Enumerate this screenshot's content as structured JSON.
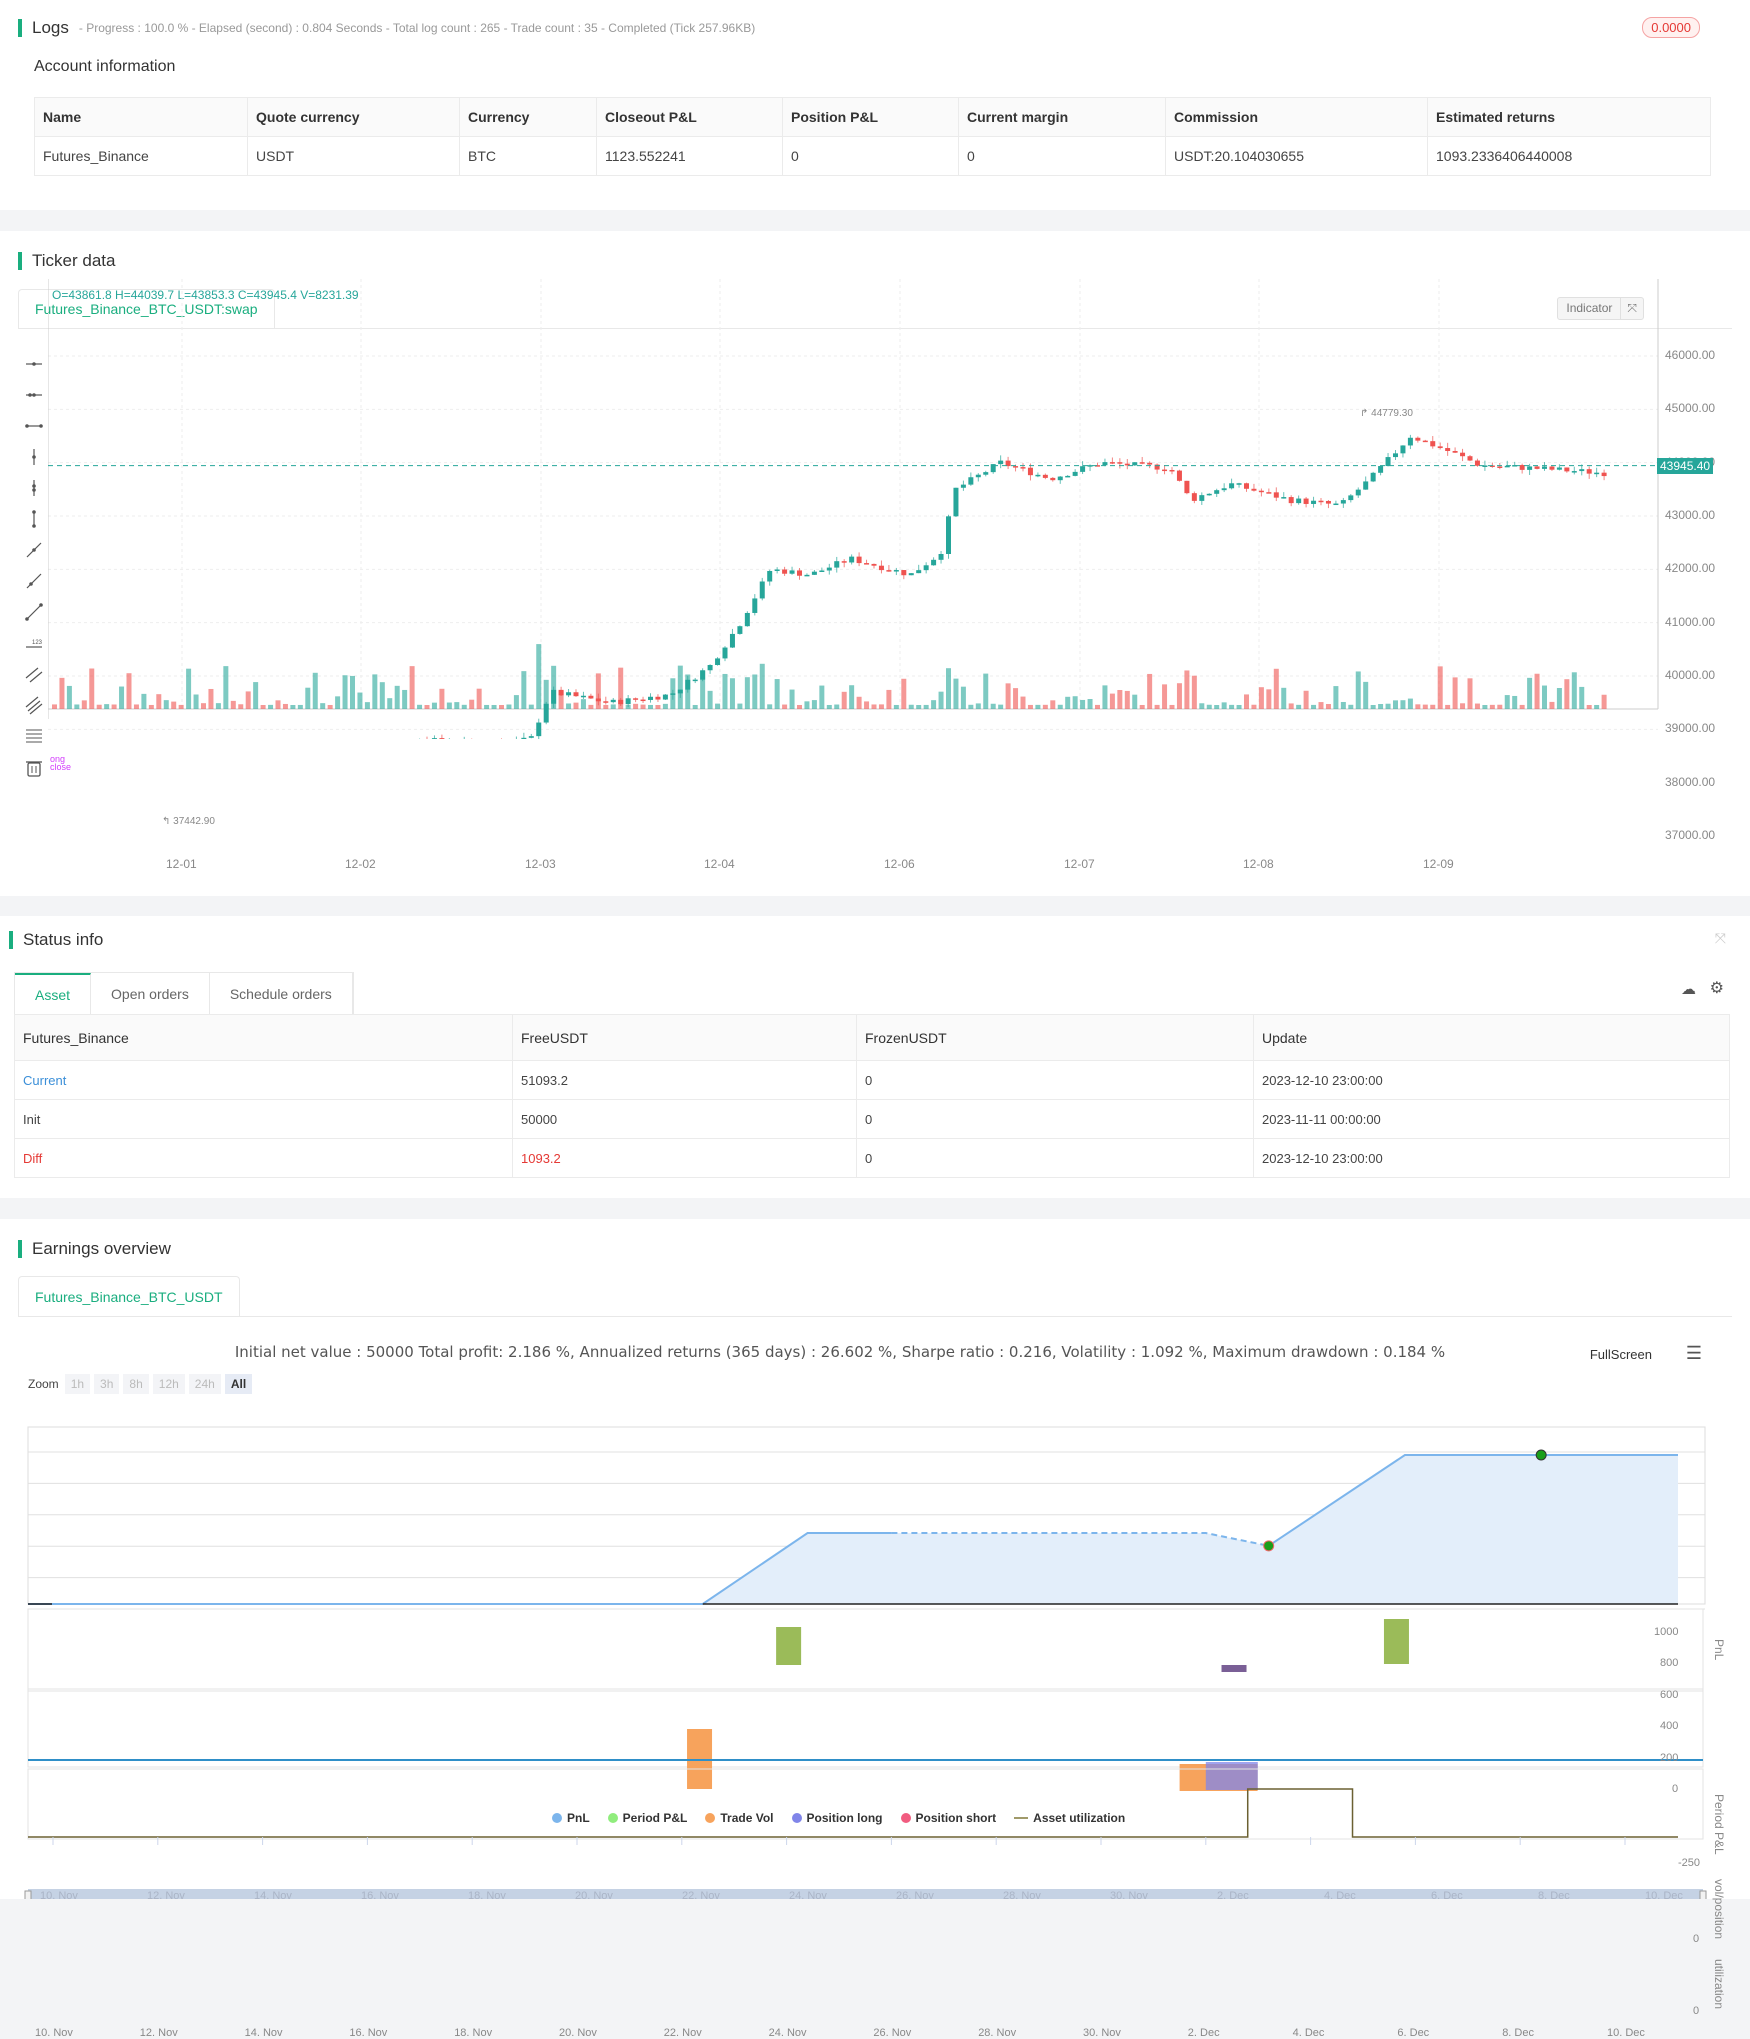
{
  "logs": {
    "title": "Logs",
    "summary": "- Progress : 100.0 % - Elapsed (second) : 0.804  Seconds - Total log count : 265 - Trade count : 35 - Completed (Tick 257.96KB)",
    "badge": "0.0000"
  },
  "account": {
    "title": "Account information",
    "headers": [
      "Name",
      "Quote currency",
      "Currency",
      "Closeout P&L",
      "Position P&L",
      "Current margin",
      "Commission",
      "Estimated returns"
    ],
    "row": [
      "Futures_Binance",
      "USDT",
      "BTC",
      "1123.552241",
      "0",
      "0",
      "USDT:20.104030655",
      "1093.2336406440008"
    ]
  },
  "ticker": {
    "title": "Ticker data",
    "tab": "Futures_Binance_BTC_USDT:swap",
    "ohlcv": "O=43861.8 H=44039.7 L=43853.3 C=43945.4 V=8231.39",
    "indicator_btn": "Indicator",
    "high_marker": "44779.30",
    "low_marker": "37442.90",
    "current_price": "43945.40",
    "trade_markers": [
      "ong",
      "close"
    ],
    "y_ticks": [
      "46000.00",
      "45000.00",
      "44000.00",
      "43000.00",
      "42000.00",
      "41000.00",
      "40000.00",
      "39000.00",
      "38000.00",
      "37000.00"
    ],
    "x_ticks": [
      "12-01",
      "12-02",
      "12-03",
      "12-04",
      "12-06",
      "12-07",
      "12-08",
      "12-09"
    ],
    "up_color": "#26a69a",
    "down_color": "#ef5350"
  },
  "status": {
    "title": "Status info",
    "tabs": [
      "Asset",
      "Open orders",
      "Schedule orders"
    ],
    "headers": [
      "Futures_Binance",
      "FreeUSDT",
      "FrozenUSDT",
      "Update"
    ],
    "rows": [
      [
        "Current",
        "51093.2",
        "0",
        "2023-12-10 23:00:00"
      ],
      [
        "Init",
        "50000",
        "0",
        "2023-11-11 00:00:00"
      ],
      [
        "Diff",
        "1093.2",
        "0",
        "2023-12-10 23:00:00"
      ]
    ]
  },
  "earnings": {
    "title": "Earnings overview",
    "tab": "Futures_Binance_BTC_USDT",
    "summary": "Initial net value : 50000 Total profit: 2.186 %, Annualized returns (365 days) : 26.602 %, Sharpe ratio : 0.216, Volatility : 1.092 %, Maximum drawdown : 0.184 %",
    "fullscreen": "FullScreen",
    "zoom_label": "Zoom",
    "zoom_buttons": [
      "1h",
      "3h",
      "8h",
      "12h",
      "24h",
      "All"
    ],
    "pnl_ticks": [
      "1000",
      "800",
      "600",
      "400",
      "200",
      "0"
    ],
    "axis_titles": [
      "PnL",
      "Period P&L",
      "vol/position",
      "utilization"
    ],
    "period_tick": "-250",
    "zero": "0",
    "x_ticks": [
      "10. Nov",
      "12. Nov",
      "14. Nov",
      "16. Nov",
      "18. Nov",
      "20. Nov",
      "22. Nov",
      "24. Nov",
      "26. Nov",
      "28. Nov",
      "30. Nov",
      "2. Dec",
      "4. Dec",
      "6. Dec",
      "8. Dec",
      "10. Dec"
    ],
    "legend": [
      {
        "label": "PnL",
        "color": "#7cb5ec"
      },
      {
        "label": "Period P&L",
        "color": "#90ed7d"
      },
      {
        "label": "Trade Vol",
        "color": "#f7a35c"
      },
      {
        "label": "Position long",
        "color": "#8085e9"
      },
      {
        "label": "Position short",
        "color": "#f15c80"
      },
      {
        "label": "Asset utilization",
        "color": "#a09a6a"
      }
    ]
  },
  "chart_data": {
    "type": "area",
    "title": "PnL",
    "x": [
      "10. Nov",
      "22. Nov",
      "23. Nov",
      "26. Nov",
      "28. Nov",
      "28.5 Nov",
      "29. Nov",
      "30. Nov",
      "11. Dec"
    ],
    "series": [
      {
        "name": "PnL",
        "values": [
          0,
          0,
          500,
          500,
          410,
          410,
          1050,
          1050,
          1050
        ]
      }
    ],
    "ylim": [
      0,
      1100
    ]
  }
}
